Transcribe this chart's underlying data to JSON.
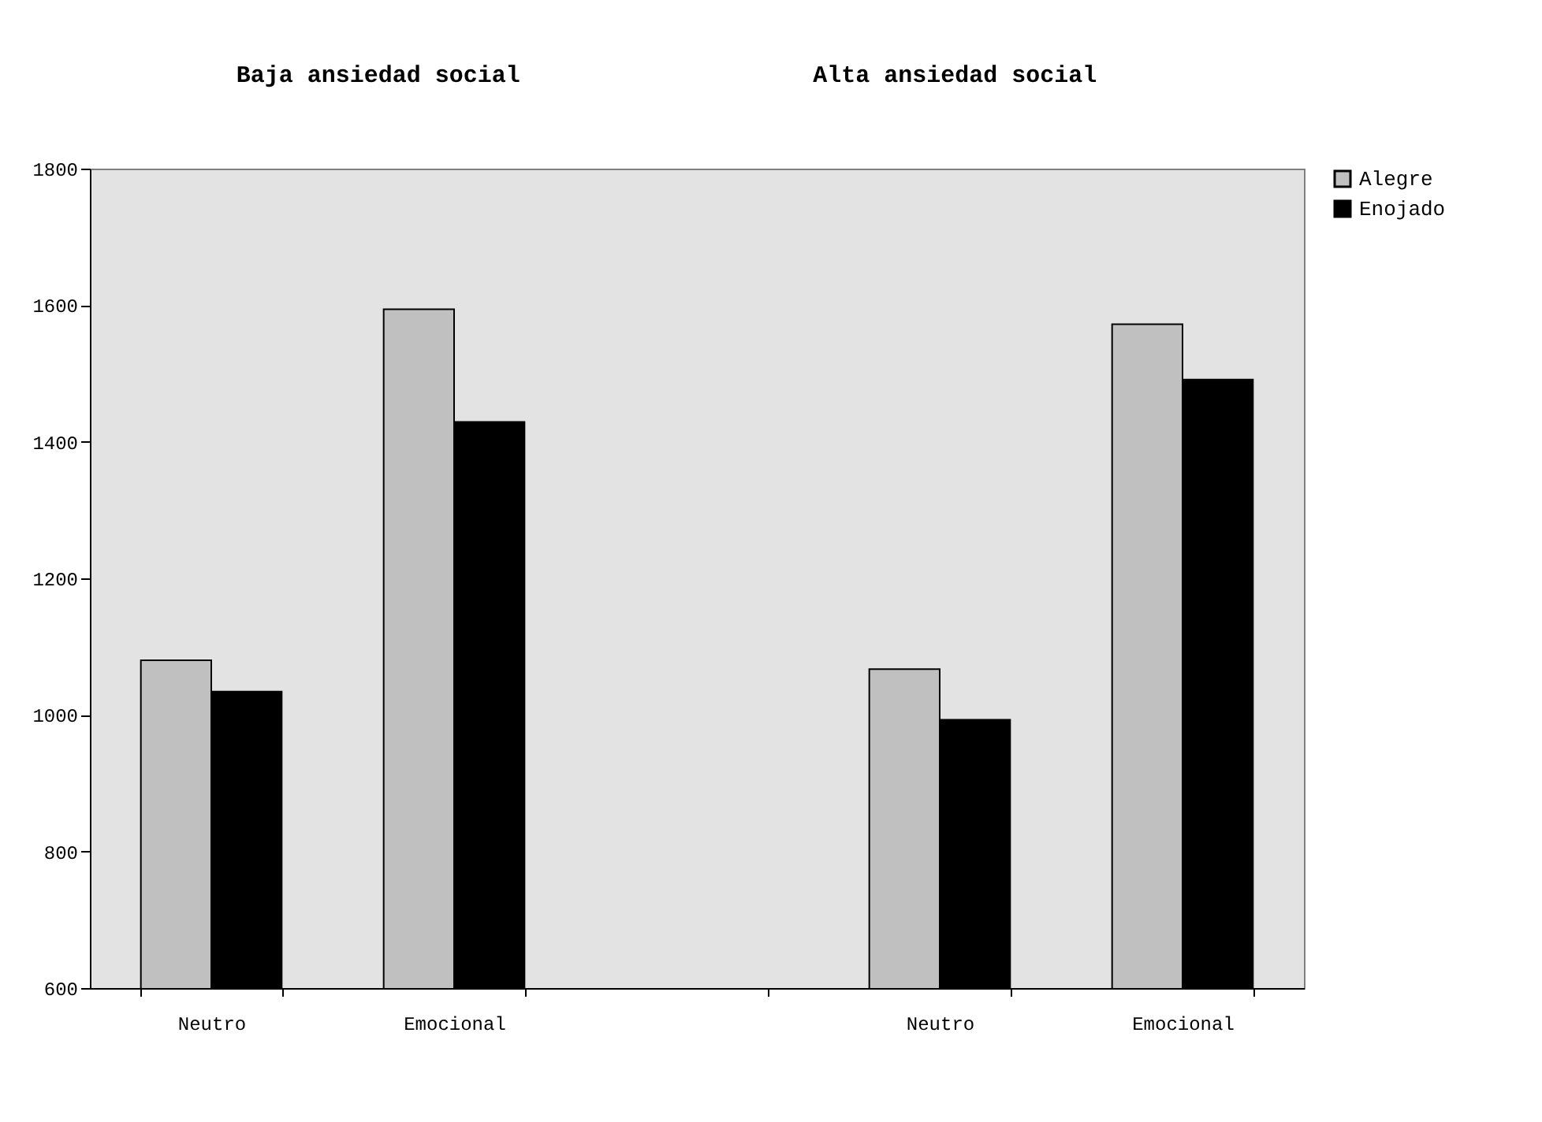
{
  "chart_data": {
    "type": "bar",
    "annotations": [
      "Baja ansiedad social",
      "Alta ansiedad social"
    ],
    "categories": [
      "Neutro",
      "Emocional",
      null,
      "Neutro",
      "Emocional"
    ],
    "series": [
      {
        "name": "Alegre",
        "color": "#c0c0c0",
        "values": [
          1080,
          1594,
          null,
          1067,
          1572
        ]
      },
      {
        "name": "Enojado",
        "color": "#000000",
        "values": [
          1034,
          1429,
          null,
          993,
          1491
        ]
      }
    ],
    "ylim": [
      600,
      1800
    ],
    "yticks": [
      600,
      800,
      1000,
      1200,
      1400,
      1600,
      1800
    ],
    "grid": false,
    "legend": "right"
  }
}
